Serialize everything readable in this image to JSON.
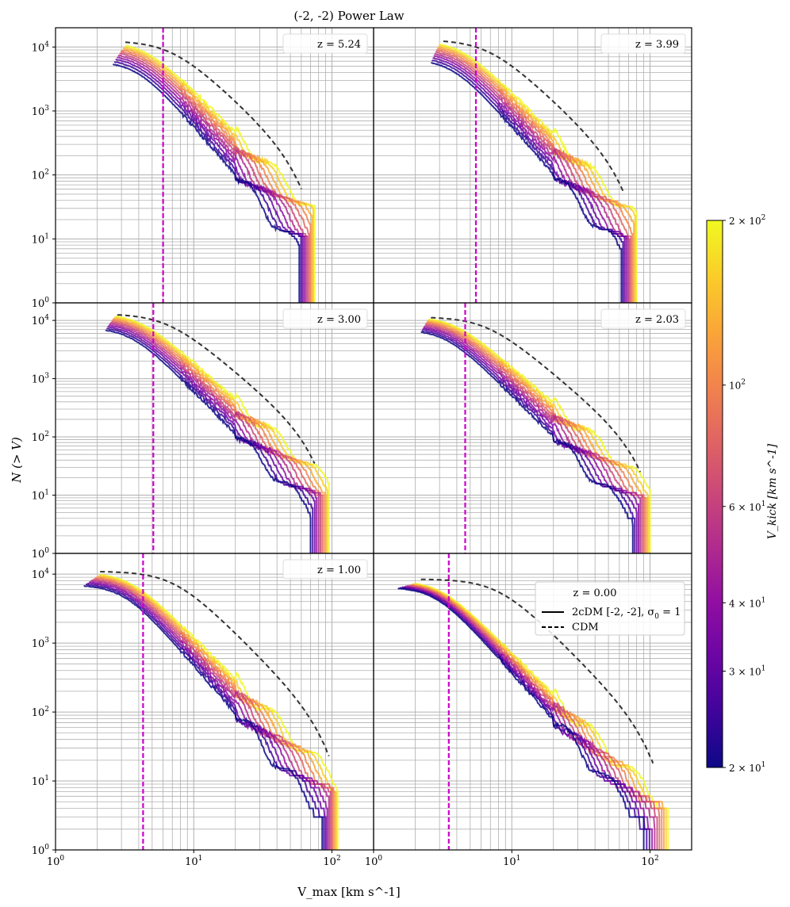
{
  "chart_data": {
    "type": "line",
    "title": "(-2, -2) Power Law",
    "xlabel": "V_max [km s^-1]",
    "ylabel": "N (> V)",
    "x_scale": "log",
    "y_scale": "log",
    "xlim": [
      1,
      200
    ],
    "ylim": [
      1,
      20000
    ],
    "grid": true,
    "x_ticks": [
      {
        "value": 1,
        "base": "10",
        "exp": "0"
      },
      {
        "value": 10,
        "base": "10",
        "exp": "1"
      },
      {
        "value": 100,
        "base": "10",
        "exp": "2"
      }
    ],
    "y_ticks": [
      {
        "value": 1,
        "base": "10",
        "exp": "0"
      },
      {
        "value": 10,
        "base": "10",
        "exp": "1"
      },
      {
        "value": 100,
        "base": "10",
        "exp": "2"
      },
      {
        "value": 1000,
        "base": "10",
        "exp": "3"
      },
      {
        "value": 10000,
        "base": "10",
        "exp": "4"
      }
    ],
    "colorbar": {
      "label": "V_kick [km s^-1]",
      "cmap": "plasma",
      "range": [
        20,
        200
      ],
      "scale": "log",
      "ticks": [
        {
          "value": 20,
          "text": "2 × 10",
          "exp": "1"
        },
        {
          "value": 30,
          "text": "3 × 10",
          "exp": "1"
        },
        {
          "value": 40,
          "text": "4 × 10",
          "exp": "1"
        },
        {
          "value": 60,
          "text": "6 × 10",
          "exp": "1"
        },
        {
          "value": 100,
          "text": "10",
          "exp": "2"
        },
        {
          "value": 200,
          "text": "2 × 10",
          "exp": "2"
        }
      ]
    },
    "legend": {
      "location": "top-right of z = 0.00 panel",
      "solid_label": "2cDM [-2, -2], σ",
      "solid_sub": "0",
      "solid_suffix": " = 1",
      "dashed_label": "CDM"
    },
    "vkick_values": [
      20,
      26,
      32,
      40,
      50,
      63,
      80,
      100,
      126,
      160,
      200
    ],
    "panels": [
      {
        "z_label": "z = 5.24",
        "vline": 6.0,
        "cdm": {
          "n0": 12500,
          "vc": 4.3,
          "alpha": 2.0,
          "vmin": 3.2,
          "vmax": 60
        },
        "n0_lo": 6000,
        "n0_hi": 12000,
        "vc_lo": 3.9,
        "vc_hi": 4.4,
        "alpha_lo": 2.5,
        "alpha_hi": 2.15,
        "vmin_lo": 2.6,
        "vmin_hi": 3.2,
        "vend_lo": 58,
        "vend_hi": 75
      },
      {
        "z_label": "z = 3.99",
        "vline": 5.5,
        "cdm": {
          "n0": 13000,
          "vc": 4.2,
          "alpha": 2.0,
          "vmin": 3.2,
          "vmax": 65
        },
        "n0_lo": 6500,
        "n0_hi": 12500,
        "vc_lo": 3.7,
        "vc_hi": 4.2,
        "alpha_lo": 2.45,
        "alpha_hi": 2.15,
        "vmin_lo": 2.6,
        "vmin_hi": 3.0,
        "vend_lo": 62,
        "vend_hi": 80
      },
      {
        "z_label": "z = 3.00",
        "vline": 5.1,
        "cdm": {
          "n0": 13000,
          "vc": 4.0,
          "alpha": 2.0,
          "vmin": 2.8,
          "vmax": 75
        },
        "n0_lo": 7500,
        "n0_hi": 13000,
        "vc_lo": 3.5,
        "vc_hi": 4.0,
        "alpha_lo": 2.4,
        "alpha_hi": 2.1,
        "vmin_lo": 2.3,
        "vmin_hi": 2.7,
        "vend_lo": 70,
        "vend_hi": 95
      },
      {
        "z_label": "z = 2.03",
        "vline": 4.6,
        "cdm": {
          "n0": 11500,
          "vc": 4.1,
          "alpha": 2.0,
          "vmin": 2.6,
          "vmax": 85
        },
        "n0_lo": 7000,
        "n0_hi": 11500,
        "vc_lo": 3.3,
        "vc_hi": 3.8,
        "alpha_lo": 2.35,
        "alpha_hi": 2.05,
        "vmin_lo": 2.2,
        "vmin_hi": 2.5,
        "vend_lo": 75,
        "vend_hi": 100
      },
      {
        "z_label": "z = 1.00",
        "vline": 4.3,
        "cdm": {
          "n0": 11000,
          "vc": 4.5,
          "alpha": 2.0,
          "vmin": 2.1,
          "vmax": 95
        },
        "n0_lo": 7000,
        "n0_hi": 10500,
        "vc_lo": 3.1,
        "vc_hi": 3.4,
        "alpha_lo": 2.3,
        "alpha_hi": 2.0,
        "vmin_lo": 1.6,
        "vmin_hi": 2.1,
        "vend_lo": 85,
        "vend_hi": 110
      },
      {
        "z_label": "z = 0.00",
        "vline": 3.5,
        "cdm": {
          "n0": 8500,
          "vc": 5.0,
          "alpha": 2.0,
          "vmin": 2.2,
          "vmax": 105
        },
        "n0_lo": 6500,
        "n0_hi": 8000,
        "vc_lo": 2.8,
        "vc_hi": 3.0,
        "alpha_lo": 2.25,
        "alpha_hi": 2.0,
        "vmin_lo": 1.5,
        "vmin_hi": 2.0,
        "vend_lo": 90,
        "vend_hi": 135
      }
    ]
  }
}
